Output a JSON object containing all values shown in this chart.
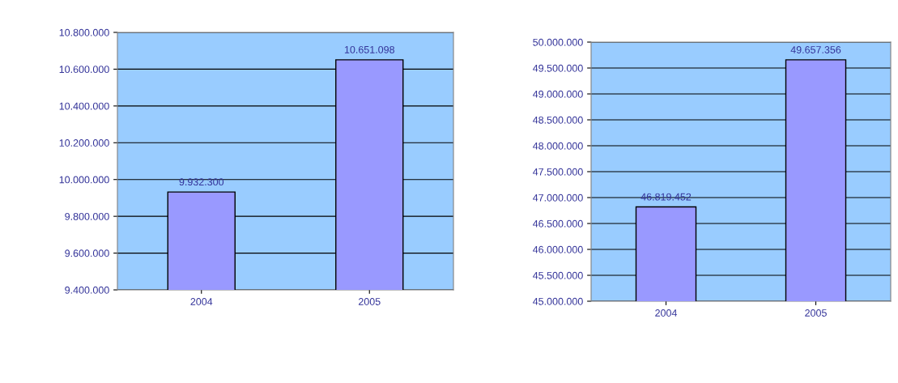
{
  "chart_data": [
    {
      "type": "bar",
      "categories": [
        "2004",
        "2005"
      ],
      "series": [
        {
          "color": "#9999ff",
          "values": [
            9932300,
            10651098
          ],
          "value_labels": [
            "9.932.300",
            "10.651.098"
          ]
        }
      ],
      "ylim": [
        9400000,
        10800000
      ],
      "yticks": [
        {
          "value": 9400000,
          "label": "9.400.000"
        },
        {
          "value": 9600000,
          "label": "9.600.000"
        },
        {
          "value": 9800000,
          "label": "9.800.000"
        },
        {
          "value": 10000000,
          "label": "10.000.000"
        },
        {
          "value": 10200000,
          "label": "10.200.000"
        },
        {
          "value": 10400000,
          "label": "10.400.000"
        },
        {
          "value": 10600000,
          "label": "10.600.000"
        },
        {
          "value": 10800000,
          "label": "10.800.000"
        }
      ],
      "grid": "y"
    },
    {
      "type": "bar",
      "categories": [
        "2004",
        "2005"
      ],
      "series": [
        {
          "color": "#9999ff",
          "values": [
            46819452,
            49657356
          ],
          "value_labels": [
            "46.819.452",
            "49.657.356"
          ]
        }
      ],
      "ylim": [
        45000000,
        50000000
      ],
      "yticks": [
        {
          "value": 45000000,
          "label": "45.000.000"
        },
        {
          "value": 45500000,
          "label": "45.500.000"
        },
        {
          "value": 46000000,
          "label": "46.000.000"
        },
        {
          "value": 46500000,
          "label": "46.500.000"
        },
        {
          "value": 47000000,
          "label": "47.000.000"
        },
        {
          "value": 47500000,
          "label": "47.500.000"
        },
        {
          "value": 48000000,
          "label": "48.000.000"
        },
        {
          "value": 48500000,
          "label": "48.500.000"
        },
        {
          "value": 49000000,
          "label": "49.000.000"
        },
        {
          "value": 49500000,
          "label": "49.500.000"
        },
        {
          "value": 50000000,
          "label": "50.000.000"
        }
      ],
      "grid": "y"
    }
  ]
}
